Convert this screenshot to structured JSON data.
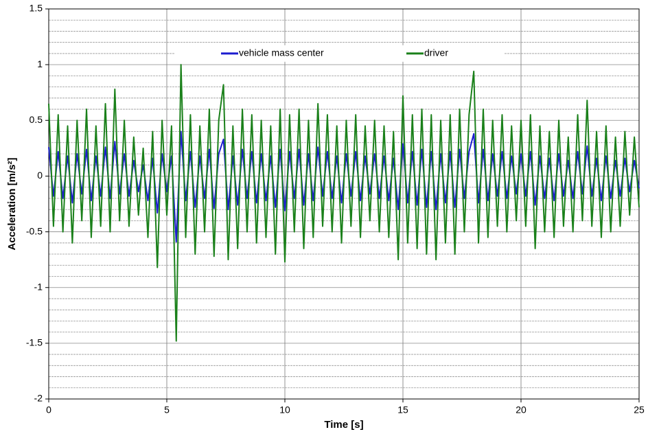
{
  "chart_data": {
    "type": "line",
    "xlabel": "Time  [s]",
    "ylabel": "Acceleration [m/s²]",
    "xlim": [
      0,
      25
    ],
    "xticks": [
      0,
      5,
      10,
      15,
      20,
      25
    ],
    "ylim": [
      -2,
      1.5
    ],
    "yticks": [
      -2,
      -1.5,
      -1,
      -0.5,
      0,
      0.5,
      1,
      1.5
    ],
    "yminorticks": [
      -1.9,
      -1.8,
      -1.7,
      -1.6,
      -1.4,
      -1.3,
      -1.2,
      -1.1,
      -0.9,
      -0.8,
      -0.7,
      -0.6,
      -0.4,
      -0.3,
      -0.2,
      -0.1,
      0.1,
      0.2,
      0.3,
      0.4,
      0.6,
      0.7,
      0.8,
      0.9,
      1.1,
      1.2,
      1.3,
      1.4
    ],
    "grid": true,
    "legend": "top",
    "x": [
      0,
      0.2,
      0.4,
      0.6,
      0.8,
      1,
      1.2,
      1.4,
      1.6,
      1.8,
      2,
      2.2,
      2.4,
      2.6,
      2.8,
      3,
      3.2,
      3.4,
      3.6,
      3.8,
      4,
      4.2,
      4.4,
      4.6,
      4.8,
      5,
      5.2,
      5.4,
      5.6,
      5.8,
      6,
      6.2,
      6.4,
      6.6,
      6.8,
      7,
      7.2,
      7.4,
      7.6,
      7.8,
      8,
      8.2,
      8.4,
      8.6,
      8.8,
      9,
      9.2,
      9.4,
      9.6,
      9.8,
      10,
      10.2,
      10.4,
      10.6,
      10.8,
      11,
      11.2,
      11.4,
      11.6,
      11.8,
      12,
      12.2,
      12.4,
      12.6,
      12.8,
      13,
      13.2,
      13.4,
      13.6,
      13.8,
      14,
      14.2,
      14.4,
      14.6,
      14.8,
      15,
      15.2,
      15.4,
      15.6,
      15.8,
      16,
      16.2,
      16.4,
      16.6,
      16.8,
      17,
      17.2,
      17.4,
      17.6,
      17.8,
      18,
      18.2,
      18.4,
      18.6,
      18.8,
      19,
      19.2,
      19.4,
      19.6,
      19.8,
      20,
      20.2,
      20.4,
      20.6,
      20.8,
      21,
      21.2,
      21.4,
      21.6,
      21.8,
      22,
      22.2,
      22.4,
      22.6,
      22.8,
      23,
      23.2,
      23.4,
      23.6,
      23.8,
      24,
      24.2,
      24.4,
      24.6,
      24.8,
      25
    ],
    "series": [
      {
        "name": "vehicle mass center",
        "color": "#1c1ccf",
        "values": [
          0.26,
          -0.18,
          0.22,
          -0.2,
          0.18,
          -0.24,
          0.2,
          -0.16,
          0.24,
          -0.22,
          0.18,
          -0.18,
          0.26,
          -0.2,
          0.31,
          -0.16,
          0.2,
          -0.18,
          0.14,
          -0.14,
          0.1,
          -0.22,
          0.16,
          -0.33,
          0.2,
          -0.14,
          0.18,
          -0.59,
          0.4,
          -0.22,
          0.22,
          -0.28,
          0.18,
          -0.2,
          0.24,
          -0.29,
          0.2,
          0.33,
          -0.3,
          0.18,
          -0.26,
          0.24,
          -0.2,
          0.22,
          -0.24,
          0.2,
          -0.22,
          0.18,
          -0.28,
          0.24,
          -0.31,
          0.22,
          -0.2,
          0.24,
          -0.26,
          0.2,
          -0.22,
          0.26,
          -0.18,
          0.22,
          -0.2,
          0.18,
          -0.24,
          0.2,
          -0.18,
          0.22,
          -0.22,
          0.18,
          -0.16,
          0.2,
          -0.2,
          0.18,
          -0.22,
          0.16,
          -0.3,
          0.29,
          -0.24,
          0.22,
          -0.26,
          0.24,
          -0.28,
          0.22,
          -0.3,
          0.2,
          -0.24,
          0.22,
          -0.28,
          0.24,
          -0.2,
          0.22,
          0.38,
          -0.24,
          0.24,
          -0.22,
          0.2,
          -0.18,
          0.22,
          -0.2,
          0.18,
          -0.16,
          0.2,
          -0.18,
          0.22,
          -0.26,
          0.18,
          -0.2,
          0.16,
          -0.22,
          0.2,
          -0.18,
          0.14,
          -0.2,
          0.22,
          -0.16,
          0.27,
          -0.18,
          0.16,
          -0.22,
          0.18,
          -0.2,
          0.14,
          -0.18,
          0.16,
          -0.14,
          0.14,
          -0.11
        ]
      },
      {
        "name": "driver",
        "color": "#1a801a",
        "values": [
          0.65,
          -0.45,
          0.55,
          -0.5,
          0.45,
          -0.6,
          0.5,
          -0.4,
          0.6,
          -0.55,
          0.45,
          -0.45,
          0.65,
          -0.5,
          0.78,
          -0.4,
          0.5,
          -0.45,
          0.35,
          -0.35,
          0.25,
          -0.55,
          0.4,
          -0.82,
          0.5,
          -0.35,
          0.45,
          -1.48,
          1.0,
          -0.55,
          0.55,
          -0.7,
          0.45,
          -0.5,
          0.6,
          -0.72,
          0.5,
          0.82,
          -0.75,
          0.45,
          -0.65,
          0.6,
          -0.5,
          0.55,
          -0.6,
          0.5,
          -0.55,
          0.45,
          -0.7,
          0.6,
          -0.77,
          0.55,
          -0.5,
          0.6,
          -0.65,
          0.5,
          -0.55,
          0.65,
          -0.45,
          0.55,
          -0.5,
          0.45,
          -0.6,
          0.5,
          -0.45,
          0.55,
          -0.55,
          0.45,
          -0.4,
          0.5,
          -0.5,
          0.45,
          -0.55,
          0.4,
          -0.75,
          0.72,
          -0.6,
          0.55,
          -0.65,
          0.6,
          -0.7,
          0.55,
          -0.75,
          0.5,
          -0.6,
          0.55,
          -0.7,
          0.6,
          -0.5,
          0.55,
          0.94,
          -0.6,
          0.6,
          -0.55,
          0.5,
          -0.45,
          0.55,
          -0.5,
          0.45,
          -0.4,
          0.5,
          -0.45,
          0.55,
          -0.65,
          0.45,
          -0.5,
          0.4,
          -0.55,
          0.5,
          -0.45,
          0.35,
          -0.5,
          0.55,
          -0.4,
          0.68,
          -0.45,
          0.4,
          -0.55,
          0.45,
          -0.5,
          0.35,
          -0.45,
          0.4,
          -0.35,
          0.35,
          -0.28
        ]
      }
    ]
  }
}
